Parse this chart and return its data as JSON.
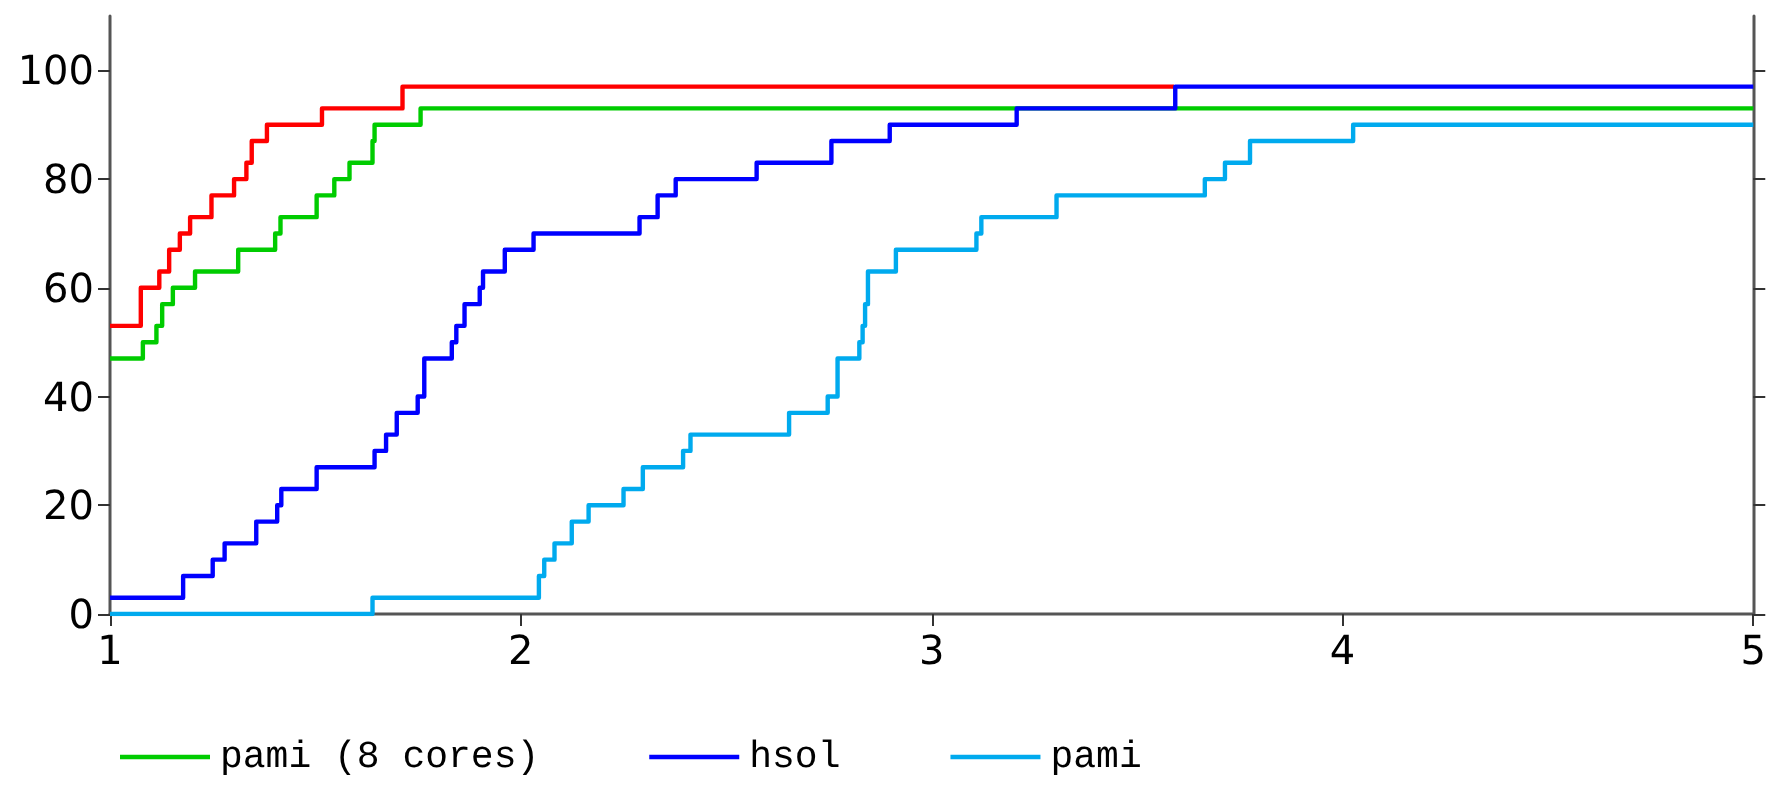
{
  "chart_data": {
    "type": "step",
    "xlim": [
      1,
      5
    ],
    "xticks": [
      1,
      2,
      3,
      4,
      5
    ],
    "ylim": [
      0,
      110
    ],
    "yticks": [
      0,
      20,
      40,
      60,
      80,
      100
    ],
    "grid": false,
    "legend": "bottom",
    "marker": "none",
    "line_style": "solid",
    "series": [
      {
        "color": "#ff0000",
        "x": [
          1,
          1.075,
          1.12,
          1.144,
          1.17,
          1.195,
          1.247,
          1.302,
          1.332,
          1.345,
          1.382,
          1.516,
          1.712,
          3.59
        ],
        "values": [
          53,
          60,
          63,
          67,
          70,
          73,
          77,
          80,
          83,
          87,
          90,
          93,
          97,
          97
        ]
      },
      {
        "name": "pami (8 cores)",
        "color": "#00cc00",
        "x": [
          1,
          1.08,
          1.113,
          1.127,
          1.153,
          1.207,
          1.312,
          1.402,
          1.415,
          1.503,
          1.546,
          1.583,
          1.639,
          1.644,
          1.756,
          5
        ],
        "values": [
          47,
          50,
          53,
          57,
          60,
          63,
          67,
          70,
          73,
          77,
          80,
          83,
          87,
          90,
          93,
          93
        ]
      },
      {
        "name": "hsol",
        "color": "#0000ff",
        "x": [
          1,
          1.178,
          1.25,
          1.279,
          1.356,
          1.407,
          1.417,
          1.503,
          1.644,
          1.672,
          1.698,
          1.749,
          1.765,
          1.832,
          1.843,
          1.863,
          1.9,
          1.908,
          1.961,
          2.031,
          2.289,
          2.333,
          2.377,
          2.574,
          2.756,
          2.898,
          3.207,
          3.593,
          5
        ],
        "values": [
          3,
          7,
          10,
          13,
          17,
          20,
          23,
          27,
          30,
          33,
          37,
          40,
          47,
          50,
          53,
          57,
          60,
          63,
          67,
          70,
          73,
          77,
          80,
          83,
          87,
          90,
          93,
          97,
          97
        ]
      },
      {
        "name": "pami",
        "color": "#00aaee",
        "x": [
          1,
          1.639,
          2.044,
          2.057,
          2.082,
          2.124,
          2.165,
          2.25,
          2.297,
          2.395,
          2.413,
          2.653,
          2.747,
          2.771,
          2.824,
          2.832,
          2.838,
          2.845,
          2.913,
          3.109,
          3.121,
          3.304,
          3.665,
          3.714,
          3.775,
          4.026,
          5
        ],
        "values": [
          0,
          3,
          7,
          10,
          13,
          17,
          20,
          23,
          27,
          30,
          33,
          37,
          40,
          47,
          50,
          53,
          57,
          63,
          67,
          70,
          73,
          77,
          80,
          83,
          87,
          90,
          90
        ]
      }
    ]
  }
}
